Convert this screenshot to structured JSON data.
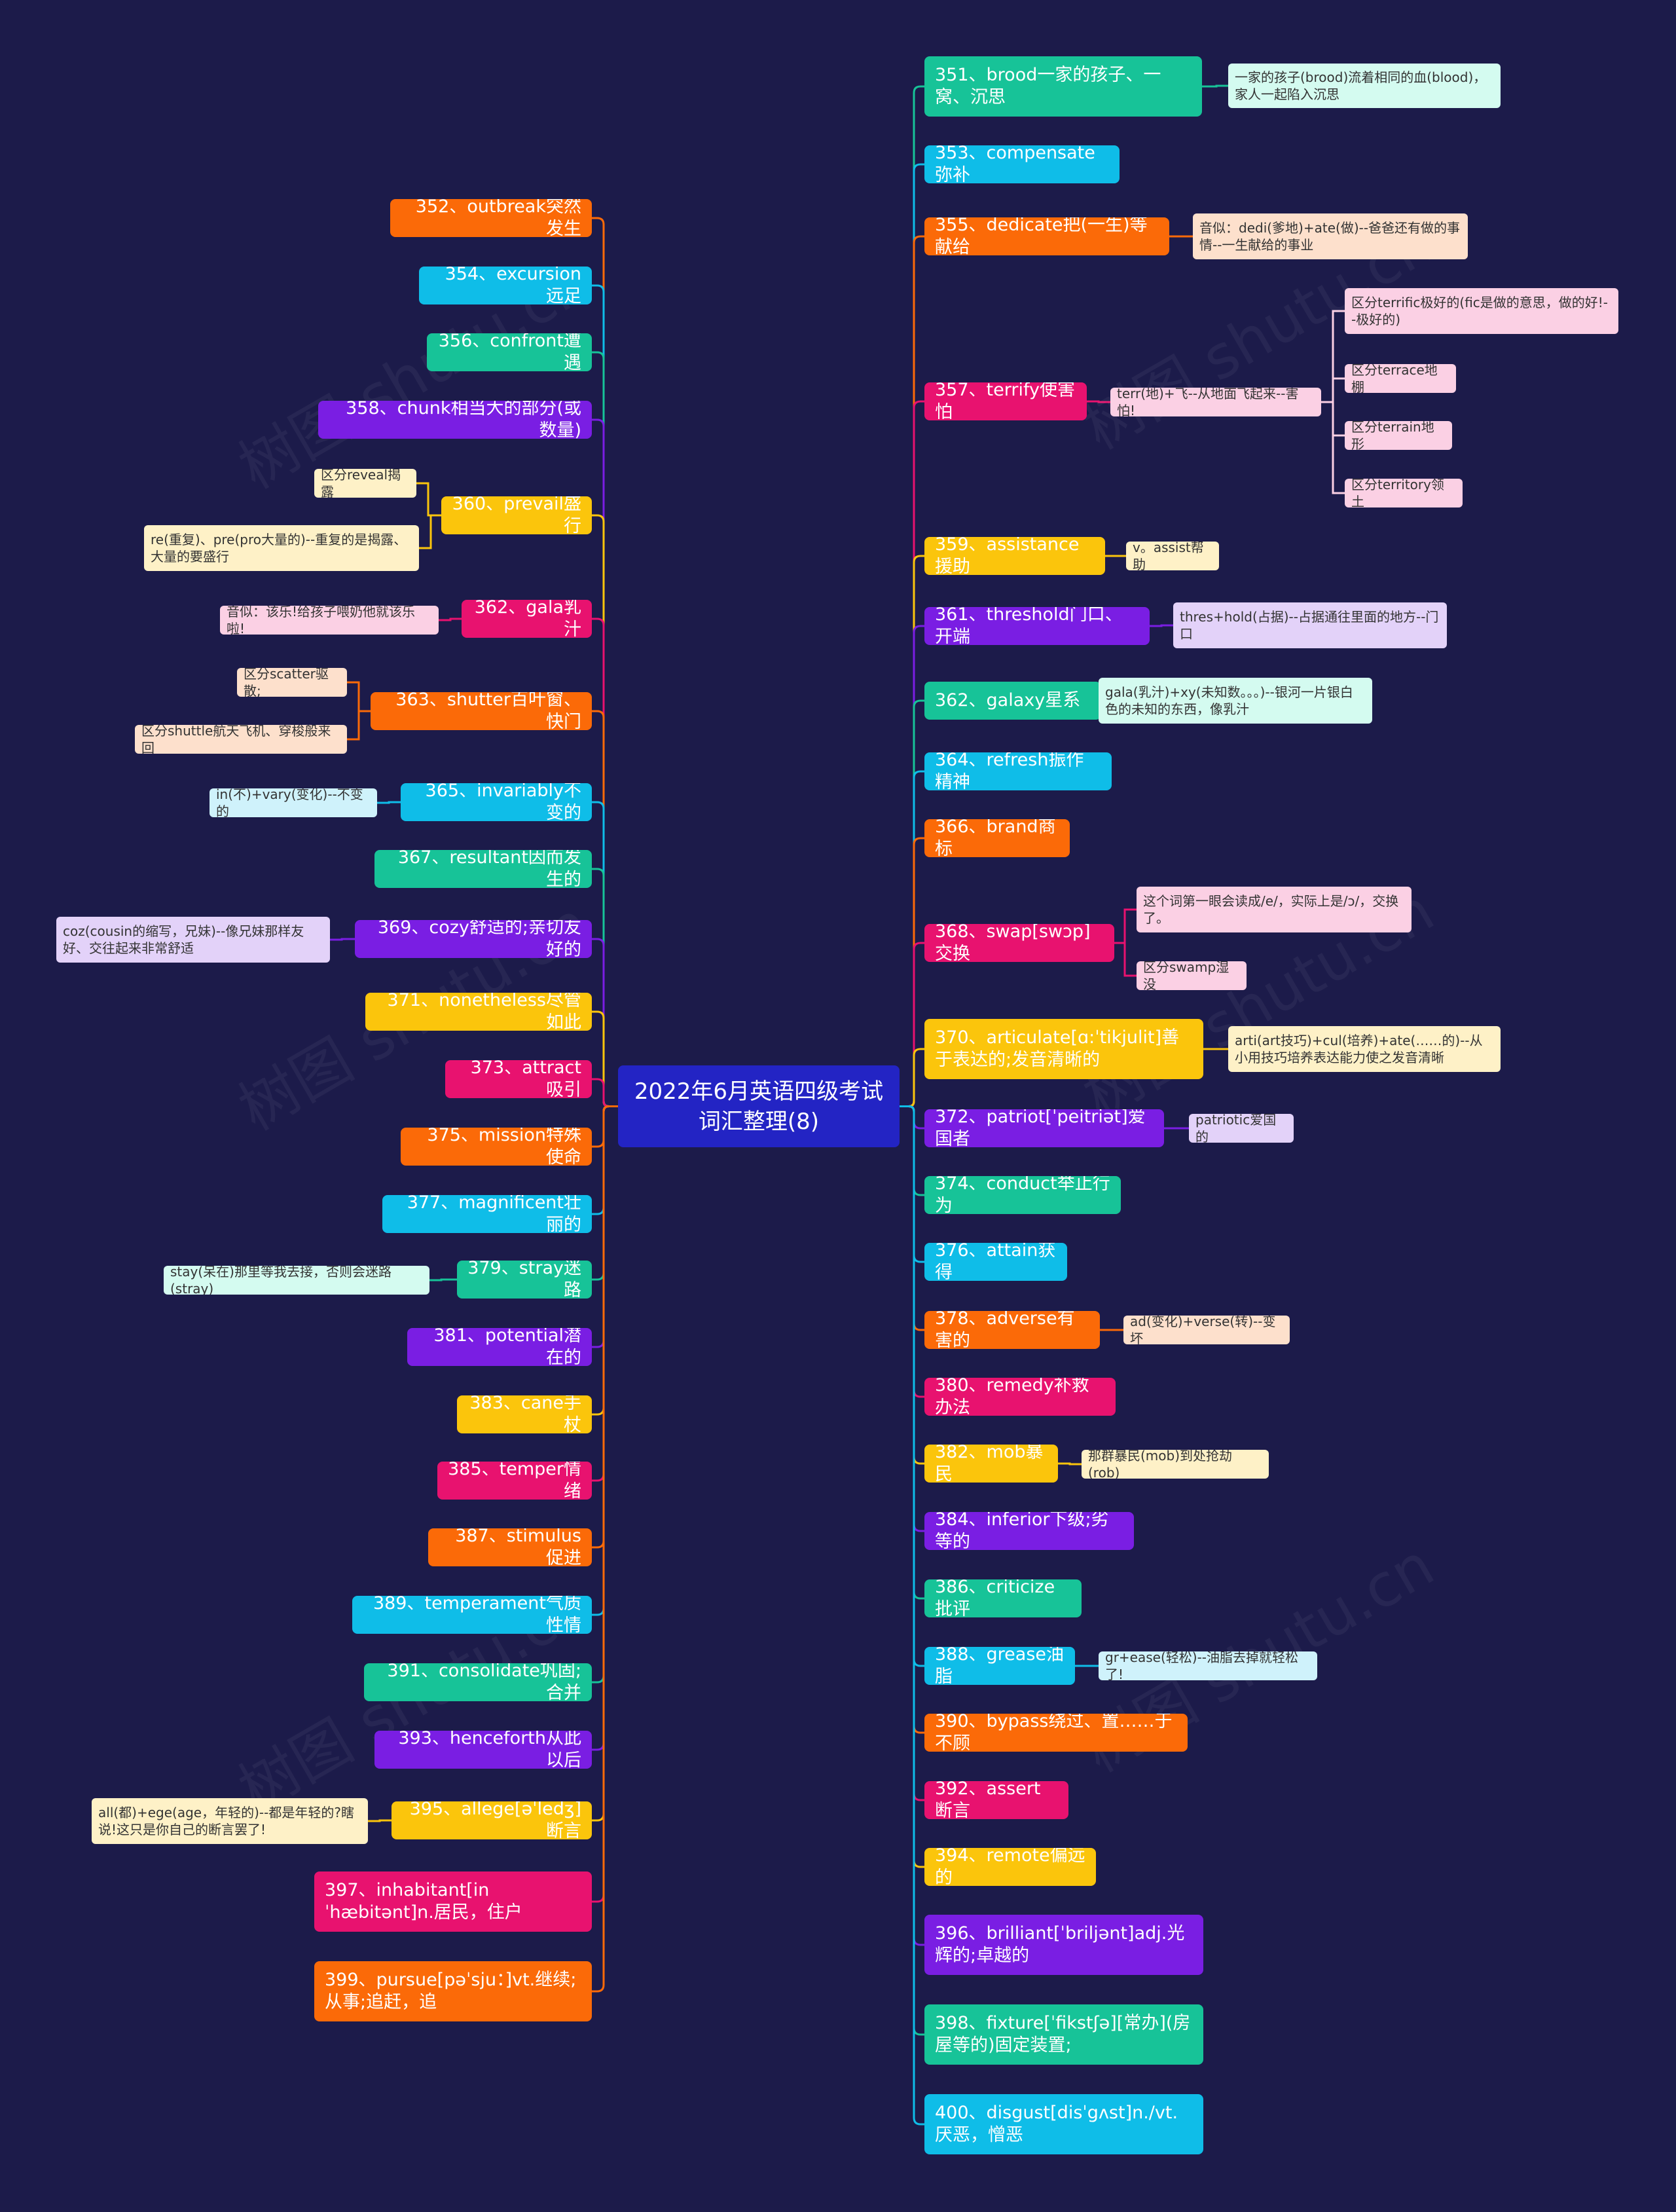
{
  "root": {
    "title": "2022年6月英语四级考试词汇整理(8)"
  },
  "watermarks": [
    "树图 shutu.cn",
    "树图 shutu.cn",
    "树图 shutu.cn",
    "树图 shutu.cn",
    "树图 shutu.cn",
    "树图 shutu.cn"
  ],
  "nodes": [
    {
      "label": "351、brood一家的孩子、一窝、沉思",
      "color": "#17c398"
    },
    {
      "label": "一家的孩子(brood)流着相同的血(blood)，家人一起陷入沉思",
      "color": "#d4fbf0"
    },
    {
      "label": "352、outbreak突然发生",
      "color": "#fb6a08"
    },
    {
      "label": "353、compensate弥补",
      "color": "#0fbde8"
    },
    {
      "label": "354、excursion远足",
      "color": "#0fbde8"
    },
    {
      "label": "355、dedicate把(一生)等献给",
      "color": "#fb6a08"
    },
    {
      "label": "音似：dedi(爹地)+ate(做)--爸爸还有做的事情--一生献给的事业",
      "color": "#fde0cc"
    },
    {
      "label": "356、confront遭遇",
      "color": "#17c398"
    },
    {
      "label": "357、terrify使害怕",
      "color": "#e8126f"
    },
    {
      "label": "terr(地)+飞--从地面飞起来--害怕!",
      "color": "#fbd0e4"
    },
    {
      "label": "区分terrific极好的(fic是做的意思，做的好!--极好的)",
      "color": "#fbd0e4"
    },
    {
      "label": "区分terrace地棚",
      "color": "#fbd0e4"
    },
    {
      "label": "区分terrain地形",
      "color": "#fbd0e4"
    },
    {
      "label": "区分territory领土",
      "color": "#fbd0e4"
    },
    {
      "label": "358、chunk相当大的部分(或数量)",
      "color": "#7a1ee3"
    },
    {
      "label": "359、assistance援助",
      "color": "#fbc50c"
    },
    {
      "label": "v。assist帮助",
      "color": "#fef1c7"
    },
    {
      "label": "360、prevail盛行",
      "color": "#fbc50c"
    },
    {
      "label": "区分reveal揭露",
      "color": "#fef1c7"
    },
    {
      "label": "re(重复)、pre(pro大量的)--重复的是揭露、大量的要盛行",
      "color": "#fef1c7"
    },
    {
      "label": "361、threshold门口、开端",
      "color": "#7a1ee3"
    },
    {
      "label": "thres+hold(占据)--占据通往里面的地方--门口",
      "color": "#e3d2f9"
    },
    {
      "label": "362、gala乳汁",
      "color": "#e8126f"
    },
    {
      "label": "音似：该乐!给孩子喂奶他就该乐啦!",
      "color": "#fbd0e4"
    },
    {
      "label": "362、galaxy星系",
      "color": "#17c398"
    },
    {
      "label": "gala(乳汁)+xy(未知数。。。)--银河一片银白色的未知的东西，像乳汁",
      "color": "#d4fbf0"
    },
    {
      "label": "363、shutter百叶窗、快门",
      "color": "#fb6a08"
    },
    {
      "label": "区分scatter驱散;",
      "color": "#fde0cc"
    },
    {
      "label": "区分shuttle航天飞机、穿梭般来回",
      "color": "#fde0cc"
    },
    {
      "label": "364、refresh振作精神",
      "color": "#0fbde8"
    },
    {
      "label": "365、invariably不变的",
      "color": "#0fbde8"
    },
    {
      "label": "in(不)+vary(变化)--不变的",
      "color": "#cff2fb"
    },
    {
      "label": "366、brand商标",
      "color": "#fb6a08"
    },
    {
      "label": "367、resultant因而发生的",
      "color": "#17c398"
    },
    {
      "label": "368、swap[swɔp]交换",
      "color": "#e8126f"
    },
    {
      "label": "这个词第一眼会读成/e/，实际上是/ɔ/，交换了。",
      "color": "#fbd0e4"
    },
    {
      "label": "区分swamp湿没",
      "color": "#fbd0e4"
    },
    {
      "label": "369、cozy舒适的;亲切友好的",
      "color": "#7a1ee3"
    },
    {
      "label": "coz(cousin的缩写，兄妹)--像兄妹那样友好、交往起来非常舒适",
      "color": "#e3d2f9"
    },
    {
      "label": "370、articulate[ɑ:ˈtikjulit]善于表达的;发音清晰的",
      "color": "#fbc50c"
    },
    {
      "label": "arti(art技巧)+cul(培养)+ate(……的)--从小用技巧培养表达能力使之发音清晰",
      "color": "#fef1c7"
    },
    {
      "label": "371、nonetheless尽管如此",
      "color": "#fbc50c"
    },
    {
      "label": "372、patriot[ˈpeitriət]爱国者",
      "color": "#7a1ee3"
    },
    {
      "label": "patriotic爱国的",
      "color": "#e3d2f9"
    },
    {
      "label": "373、attract吸引",
      "color": "#e8126f"
    },
    {
      "label": "374、conduct举止行为",
      "color": "#17c398"
    },
    {
      "label": "375、mission特殊使命",
      "color": "#fb6a08"
    },
    {
      "label": "376、attain获得",
      "color": "#0fbde8"
    },
    {
      "label": "377、magnificent壮丽的",
      "color": "#0fbde8"
    },
    {
      "label": "378、adverse有害的",
      "color": "#fb6a08"
    },
    {
      "label": "ad(变化)+verse(转)--变坏",
      "color": "#fde0cc"
    },
    {
      "label": "379、stray迷路",
      "color": "#17c398"
    },
    {
      "label": "stay(呆在)那里等我去接，否则会迷路(stray)",
      "color": "#d4fbf0"
    },
    {
      "label": "380、remedy补救办法",
      "color": "#e8126f"
    },
    {
      "label": "381、potential潜在的",
      "color": "#7a1ee3"
    },
    {
      "label": "382、mob暴民",
      "color": "#fbc50c"
    },
    {
      "label": "那群暴民(mob)到处抢劫(rob)",
      "color": "#fef1c7"
    },
    {
      "label": "383、cane手杖",
      "color": "#fbc50c"
    },
    {
      "label": "384、inferior下级;劣等的",
      "color": "#7a1ee3"
    },
    {
      "label": "385、temper情绪",
      "color": "#e8126f"
    },
    {
      "label": "386、criticize批评",
      "color": "#17c398"
    },
    {
      "label": "387、stimulus促进",
      "color": "#fb6a08"
    },
    {
      "label": "388、grease油脂",
      "color": "#0fbde8"
    },
    {
      "label": "gr+ease(轻松)--油脂去掉就轻松了!",
      "color": "#cff2fb"
    },
    {
      "label": "389、temperament气质性情",
      "color": "#0fbde8"
    },
    {
      "label": "390、bypass绕过、置……于不顾",
      "color": "#fb6a08"
    },
    {
      "label": "391、consolidate巩固;合并",
      "color": "#17c398"
    },
    {
      "label": "392、assert断言",
      "color": "#e8126f"
    },
    {
      "label": "393、henceforth从此以后",
      "color": "#7a1ee3"
    },
    {
      "label": "394、remote偏远的",
      "color": "#fbc50c"
    },
    {
      "label": "395、allege[əˈledʒ]断言",
      "color": "#fbc50c"
    },
    {
      "label": "all(都)+ege(age，年轻的)--都是年轻的?瞎说!这只是你自己的断言罢了!",
      "color": "#fef1c7"
    },
    {
      "label": "396、brilliant[ˈbriljənt]adj.光辉的;卓越的",
      "color": "#7a1ee3"
    },
    {
      "label": "397、inhabitant[inˈhæbitənt]n.居民，住户",
      "color": "#e8126f"
    },
    {
      "label": "398、fixture[ˈfikstʃə][常办](房屋等的)固定装置;",
      "color": "#17c398"
    },
    {
      "label": "399、pursue[pəˈsju：]vt.继续;从事;追赶，追",
      "color": "#fb6a08"
    },
    {
      "label": "400、disgust[disˈgʌst]n./vt.厌恶，憎恶",
      "color": "#0fbde8"
    }
  ]
}
